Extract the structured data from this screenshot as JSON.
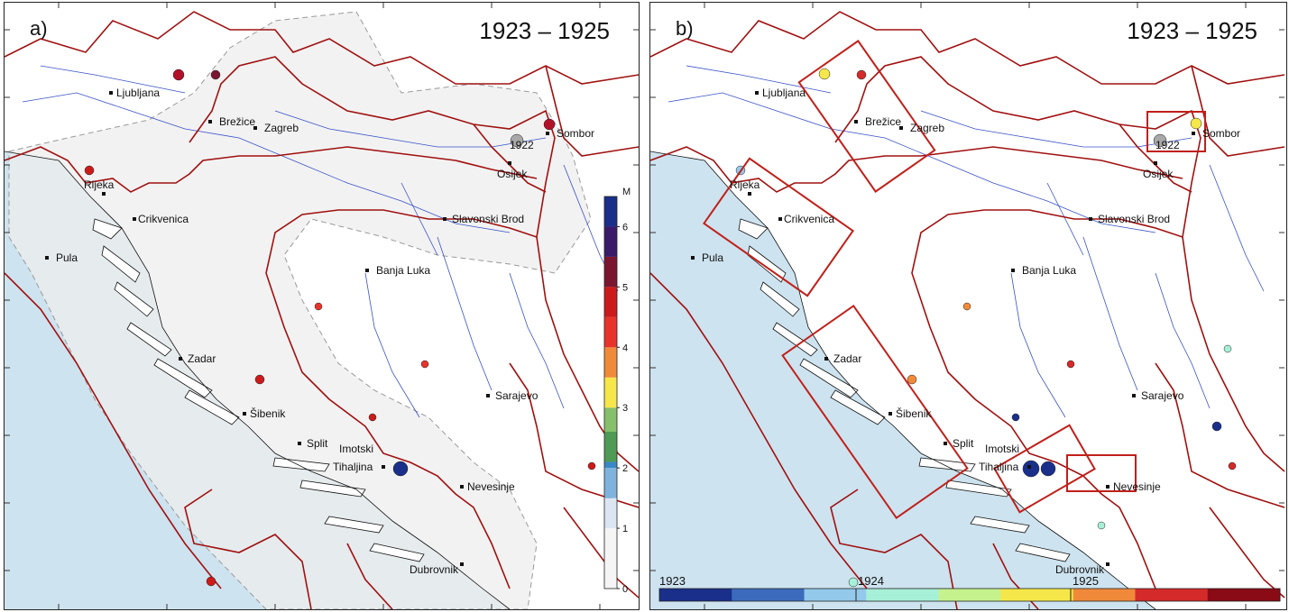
{
  "panels": [
    {
      "label": "a)",
      "period": "1923 – 1925"
    },
    {
      "label": "b)",
      "period": "1923 – 1925"
    }
  ],
  "cities_a": [
    {
      "name": "Ljubljana"
    },
    {
      "name": "Brežice"
    },
    {
      "name": "Zagreb"
    },
    {
      "name": "Sombor"
    },
    {
      "name": "1922"
    },
    {
      "name": "Osijek"
    },
    {
      "name": "Rijeka"
    },
    {
      "name": "Crikvenica"
    },
    {
      "name": "Slavonski Brod"
    },
    {
      "name": "Pula"
    },
    {
      "name": "Banja Luka"
    },
    {
      "name": "Zadar"
    },
    {
      "name": "Šibenik"
    },
    {
      "name": "Sarajevo"
    },
    {
      "name": "Split"
    },
    {
      "name": "Imotski"
    },
    {
      "name": "Tihaljina"
    },
    {
      "name": "Nevesinje"
    },
    {
      "name": "Dubrovnik"
    }
  ],
  "cities_b": [
    {
      "name": "Ljubljana"
    },
    {
      "name": "Brežice"
    },
    {
      "name": "Zagreb"
    },
    {
      "name": "Sombor"
    },
    {
      "name": "1922"
    },
    {
      "name": "Osijek"
    },
    {
      "name": "Rijeka"
    },
    {
      "name": "Crikvenica"
    },
    {
      "name": "Slavonski Brod"
    },
    {
      "name": "Pula"
    },
    {
      "name": "Banja Luka"
    },
    {
      "name": "Zadar"
    },
    {
      "name": "Šibenik"
    },
    {
      "name": "Sarajevo"
    },
    {
      "name": "Split"
    },
    {
      "name": "Imotski"
    },
    {
      "name": "Tihaljina"
    },
    {
      "name": "Nevesinje"
    },
    {
      "name": "Dubrovnik"
    }
  ],
  "magnitude_colorbar": {
    "title": "M",
    "ticks": [
      "6",
      "5",
      "4",
      "3",
      "2",
      "1",
      "0"
    ],
    "range": [
      0,
      6.5
    ]
  },
  "time_colorbar": {
    "ticks": [
      "1923",
      "1924",
      "1925"
    ]
  },
  "colors": {
    "sea": "#cde3ef",
    "study_area": "#eeeeee",
    "border": "#a01010",
    "river": "#3a52c8",
    "box": "#c0201a",
    "old_event": "#a8a8a8"
  }
}
